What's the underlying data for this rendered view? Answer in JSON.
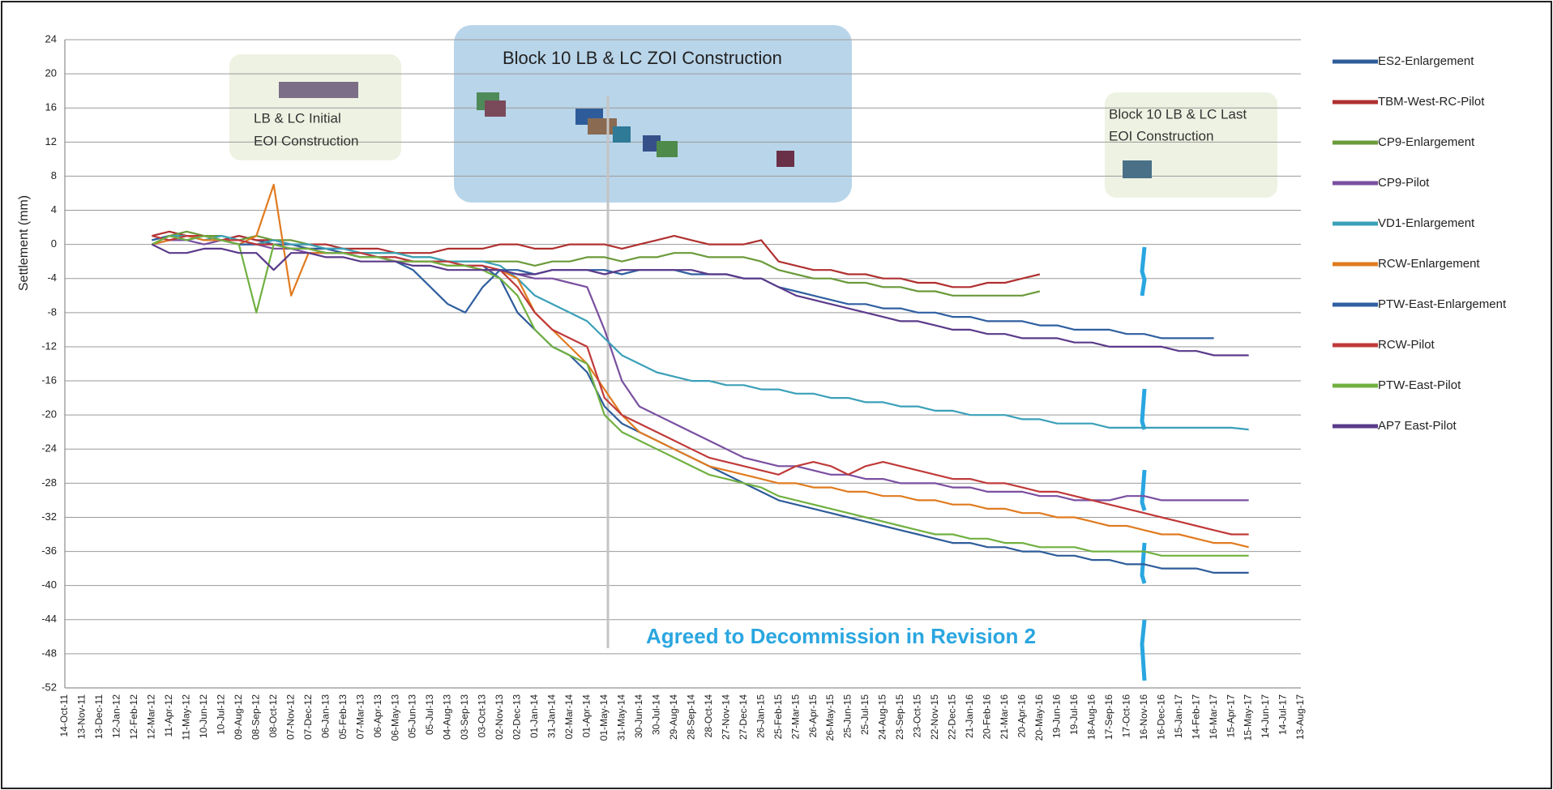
{
  "chart_data": {
    "type": "line",
    "y_label": "Settlement (mm)",
    "ylim": [
      -52,
      24
    ],
    "yticks": [
      -52,
      -48,
      -44,
      -40,
      -36,
      -32,
      -28,
      -24,
      -20,
      -16,
      -12,
      -8,
      -4,
      0,
      4,
      8,
      12,
      16,
      20,
      24
    ],
    "grid": true,
    "legend": "right",
    "annotations": {
      "zoi": "Block 10 LB & LC ZOI Construction",
      "initial": [
        "LB & LC Initial",
        "EOI Construction"
      ],
      "last": [
        "Block 10 LB & LC Last",
        "EOI Construction"
      ],
      "decommission": "Agreed to Decommission in Revision 2"
    },
    "categories": [
      "14-Oct-11",
      "13-Nov-11",
      "13-Dec-11",
      "12-Jan-12",
      "12-Feb-12",
      "12-Mar-12",
      "11-Apr-12",
      "11-May-12",
      "10-Jun-12",
      "10-Jul-12",
      "09-Aug-12",
      "08-Sep-12",
      "08-Oct-12",
      "07-Nov-12",
      "07-Dec-12",
      "06-Jan-13",
      "05-Feb-13",
      "07-Mar-13",
      "06-Apr-13",
      "06-May-13",
      "05-Jun-13",
      "05-Jul-13",
      "04-Aug-13",
      "03-Sep-13",
      "03-Oct-13",
      "02-Nov-13",
      "02-Dec-13",
      "01-Jan-14",
      "31-Jan-14",
      "02-Mar-14",
      "01-Apr-14",
      "01-May-14",
      "31-May-14",
      "30-Jun-14",
      "30-Jul-14",
      "29-Aug-14",
      "28-Sep-14",
      "28-Oct-14",
      "27-Nov-14",
      "27-Dec-14",
      "26-Jan-15",
      "25-Feb-15",
      "27-Mar-15",
      "26-Apr-15",
      "26-May-15",
      "25-Jun-15",
      "25-Jul-15",
      "24-Aug-15",
      "23-Sep-15",
      "23-Oct-15",
      "22-Nov-15",
      "22-Dec-15",
      "21-Jan-16",
      "20-Feb-16",
      "21-Mar-16",
      "20-Apr-16",
      "20-May-16",
      "19-Jun-16",
      "19-Jul-16",
      "18-Aug-16",
      "17-Sep-16",
      "17-Oct-16",
      "16-Nov-16",
      "16-Dec-16",
      "15-Jan-17",
      "14-Feb-17",
      "16-Mar-17",
      "15-Apr-17",
      "15-May-17",
      "14-Jun-17",
      "14-Jul-17",
      "13-Aug-17"
    ],
    "series": [
      {
        "name": "ES2-Enlargement",
        "color": "#2e5c9a",
        "values": [
          null,
          null,
          null,
          null,
          null,
          0.5,
          1,
          0.5,
          1,
          0.5,
          1,
          0.5,
          0,
          0,
          -0.5,
          -0.5,
          -1,
          -1,
          -1.5,
          -1.5,
          -2,
          -2,
          -2,
          -2.5,
          -2.5,
          -4,
          -8,
          -10,
          -12,
          -13,
          -15,
          -19,
          -21,
          -22,
          -23,
          -24,
          -25,
          -26,
          -27,
          -28,
          -29,
          -30,
          -30.5,
          -31,
          -31.5,
          -32,
          -32.5,
          -33,
          -33.5,
          -34,
          -34.5,
          -35,
          -35,
          -35.5,
          -35.5,
          -36,
          -36,
          -36.5,
          -36.5,
          -37,
          -37,
          -37.5,
          -37.5,
          -38,
          -38,
          -38,
          -38.5,
          -38.5,
          -38.5,
          null,
          null,
          null
        ]
      },
      {
        "name": "TBM-West-RC-Pilot",
        "color": "#b03030",
        "values": [
          null,
          null,
          null,
          null,
          null,
          1,
          1.5,
          1,
          1,
          0.5,
          1,
          0.5,
          0.5,
          0,
          0,
          0,
          -0.5,
          -0.5,
          -0.5,
          -1,
          -1,
          -1,
          -0.5,
          -0.5,
          -0.5,
          0,
          0,
          -0.5,
          -0.5,
          0,
          0,
          0,
          -0.5,
          0,
          0.5,
          1,
          0.5,
          0,
          0,
          0,
          0.5,
          -2,
          -2.5,
          -3,
          -3,
          -3.5,
          -3.5,
          -4,
          -4,
          -4.5,
          -4.5,
          -5,
          -5,
          -4.5,
          -4.5,
          -4,
          -3.5,
          null,
          null,
          null,
          null,
          null,
          null,
          null,
          null,
          null,
          null,
          null,
          null,
          null,
          null,
          null
        ]
      },
      {
        "name": "CP9-Enlargement",
        "color": "#6a9a3a",
        "values": [
          null,
          null,
          null,
          null,
          null,
          0,
          1,
          1.5,
          1,
          1,
          0.5,
          1,
          0.5,
          0.5,
          0,
          -0.5,
          -0.5,
          -1,
          -1,
          -1,
          -1.5,
          -1.5,
          -2,
          -2,
          -2,
          -2,
          -2,
          -2.5,
          -2,
          -2,
          -1.5,
          -1.5,
          -2,
          -1.5,
          -1.5,
          -1,
          -1,
          -1.5,
          -1.5,
          -1.5,
          -2,
          -3,
          -3.5,
          -4,
          -4,
          -4.5,
          -4.5,
          -5,
          -5,
          -5.5,
          -5.5,
          -6,
          -6,
          -6,
          -6,
          -6,
          -5.5,
          null,
          null,
          null,
          null,
          null,
          null,
          null,
          null,
          null,
          null,
          null,
          null,
          null,
          null,
          null
        ]
      },
      {
        "name": "CP9-Pilot",
        "color": "#7a4fa0",
        "values": [
          null,
          null,
          null,
          null,
          null,
          0,
          0.5,
          0.5,
          0,
          0.5,
          0,
          0,
          -0.5,
          -0.5,
          -1,
          -1,
          -1,
          -1.5,
          -1.5,
          -2,
          -2,
          -2,
          -2.5,
          -2.5,
          -3,
          -3,
          -3.5,
          -4,
          -4,
          -4.5,
          -5,
          -10,
          -16,
          -19,
          -20,
          -21,
          -22,
          -23,
          -24,
          -25,
          -25.5,
          -26,
          -26,
          -26.5,
          -27,
          -27,
          -27.5,
          -27.5,
          -28,
          -28,
          -28,
          -28.5,
          -28.5,
          -29,
          -29,
          -29,
          -29.5,
          -29.5,
          -30,
          -30,
          -30,
          -29.5,
          -29.5,
          -30,
          -30,
          -30,
          -30,
          -30,
          -30,
          null,
          null,
          null
        ]
      },
      {
        "name": "VD1-Enlargement",
        "color": "#3aa0b8",
        "values": [
          null,
          null,
          null,
          null,
          null,
          0.5,
          1,
          1,
          0.5,
          1,
          0.5,
          0,
          0.5,
          0,
          0,
          -0.5,
          -0.5,
          -1,
          -1,
          -1,
          -1.5,
          -1.5,
          -2,
          -2,
          -2,
          -2.5,
          -4,
          -6,
          -7,
          -8,
          -9,
          -11,
          -13,
          -14,
          -15,
          -15.5,
          -16,
          -16,
          -16.5,
          -16.5,
          -17,
          -17,
          -17.5,
          -17.5,
          -18,
          -18,
          -18.5,
          -18.5,
          -19,
          -19,
          -19.5,
          -19.5,
          -20,
          -20,
          -20,
          -20.5,
          -20.5,
          -21,
          -21,
          -21,
          -21.5,
          -21.5,
          -21.5,
          -21.5,
          -21.5,
          -21.5,
          -21.5,
          -21.5,
          -21.7,
          null,
          null,
          null
        ]
      },
      {
        "name": "RCW-Enlargement",
        "color": "#e07b20",
        "values": [
          null,
          null,
          null,
          null,
          null,
          0,
          0.5,
          1,
          0.5,
          0.5,
          0,
          1,
          7,
          -6,
          -1,
          -1,
          -1,
          -1.5,
          -1.5,
          -2,
          -2,
          -2,
          -2.5,
          -2.5,
          -3,
          -3,
          -4,
          -8,
          -10,
          -12,
          -14,
          -17,
          -20,
          -22,
          -23,
          -24,
          -25,
          -26,
          -26.5,
          -27,
          -27.5,
          -28,
          -28,
          -28.5,
          -28.5,
          -29,
          -29,
          -29.5,
          -29.5,
          -30,
          -30,
          -30.5,
          -30.5,
          -31,
          -31,
          -31.5,
          -31.5,
          -32,
          -32,
          -32.5,
          -33,
          -33,
          -33.5,
          -34,
          -34,
          -34.5,
          -35,
          -35,
          -35.5,
          null,
          null,
          null
        ]
      },
      {
        "name": "PTW-East-Enlargement",
        "color": "#2f5fa0",
        "values": [
          null,
          null,
          null,
          null,
          null,
          0.5,
          1,
          0.5,
          1,
          0.5,
          0,
          0,
          0,
          -0.5,
          -0.5,
          -1,
          -1,
          -1.5,
          -1.5,
          -2,
          -3,
          -5,
          -7,
          -8,
          -5,
          -3,
          -3,
          -3.5,
          -3,
          -3,
          -3,
          -3,
          -3.5,
          -3,
          -3,
          -3,
          -3.5,
          -3.5,
          -3.5,
          -4,
          -4,
          -5,
          -5.5,
          -6,
          -6.5,
          -7,
          -7,
          -7.5,
          -7.5,
          -8,
          -8,
          -8.5,
          -8.5,
          -9,
          -9,
          -9,
          -9.5,
          -9.5,
          -10,
          -10,
          -10,
          -10.5,
          -10.5,
          -11,
          -11,
          -11,
          -11,
          null,
          null,
          null,
          null,
          null
        ]
      },
      {
        "name": "RCW-Pilot",
        "color": "#c03a3a",
        "values": [
          null,
          null,
          null,
          null,
          null,
          1,
          0.5,
          1,
          1,
          0.5,
          0.5,
          0,
          0,
          -0.5,
          -0.5,
          -1,
          -1,
          -1,
          -1.5,
          -1.5,
          -2,
          -2,
          -2,
          -2.5,
          -2.5,
          -3,
          -5,
          -8,
          -10,
          -11,
          -12,
          -18,
          -20,
          -21,
          -22,
          -23,
          -24,
          -25,
          -25.5,
          -26,
          -26.5,
          -27,
          -26,
          -25.5,
          -26,
          -27,
          -26,
          -25.5,
          -26,
          -26.5,
          -27,
          -27.5,
          -27.5,
          -28,
          -28,
          -28.5,
          -29,
          -29,
          -29.5,
          -30,
          -30.5,
          -31,
          -31.5,
          -32,
          -32.5,
          -33,
          -33.5,
          -34,
          -34,
          null,
          null,
          null
        ]
      },
      {
        "name": "PTW-East-Pilot",
        "color": "#70b040",
        "values": [
          null,
          null,
          null,
          null,
          null,
          0,
          1,
          0.5,
          1,
          0.5,
          0,
          -8,
          0,
          -0.5,
          -0.5,
          -1,
          -1,
          -1.5,
          -1.5,
          -2,
          -2,
          -2,
          -2.5,
          -2.5,
          -3,
          -4,
          -6,
          -10,
          -12,
          -13,
          -14,
          -20,
          -22,
          -23,
          -24,
          -25,
          -26,
          -27,
          -27.5,
          -28,
          -28.5,
          -29.5,
          -30,
          -30.5,
          -31,
          -31.5,
          -32,
          -32.5,
          -33,
          -33.5,
          -34,
          -34,
          -34.5,
          -34.5,
          -35,
          -35,
          -35.5,
          -35.5,
          -35.5,
          -36,
          -36,
          -36,
          -36,
          -36.5,
          -36.5,
          -36.5,
          -36.5,
          -36.5,
          -36.5,
          null,
          null,
          null
        ]
      },
      {
        "name": "AP7 East-Pilot",
        "color": "#5a3a8a",
        "values": [
          null,
          null,
          null,
          null,
          null,
          0,
          -1,
          -1,
          -0.5,
          -0.5,
          -1,
          -1,
          -3,
          -1,
          -1,
          -1.5,
          -1.5,
          -2,
          -2,
          -2,
          -2.5,
          -2.5,
          -3,
          -3,
          -3,
          -3,
          -3.5,
          -3.5,
          -3,
          -3,
          -3,
          -3.5,
          -3,
          -3,
          -3,
          -3,
          -3,
          -3.5,
          -3.5,
          -4,
          -4,
          -5,
          -6,
          -6.5,
          -7,
          -7.5,
          -8,
          -8.5,
          -9,
          -9,
          -9.5,
          -10,
          -10,
          -10.5,
          -10.5,
          -11,
          -11,
          -11,
          -11.5,
          -11.5,
          -12,
          -12,
          -12,
          -12,
          -12.5,
          -12.5,
          -13,
          -13,
          -13,
          null,
          null,
          null
        ]
      }
    ]
  }
}
